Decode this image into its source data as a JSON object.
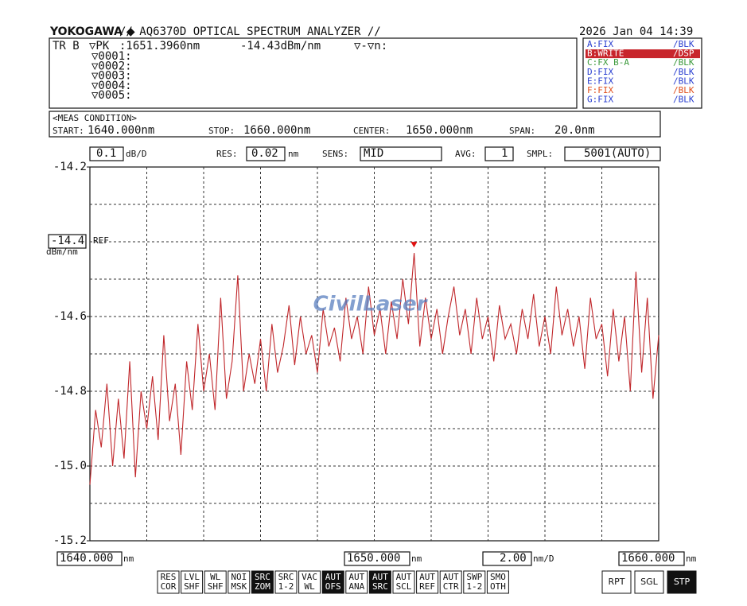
{
  "header": {
    "brand": "YOKOGAWA ◆",
    "title": "// AQ6370D OPTICAL SPECTRUM ANALYZER //",
    "datetime": "2026 Jan 04 14:39"
  },
  "marker_panel": {
    "trace": "TR B",
    "marker": "▽PK",
    "wavelength": ":1651.3960nm",
    "level": "-14.43dBm/nm",
    "delta": "▽-▽n:",
    "markers": [
      "▽0001:",
      "▽0002:",
      "▽0003:",
      "▽0004:",
      "▽0005:"
    ]
  },
  "traces": [
    {
      "label": "A:FIX",
      "mode": "/BLK",
      "color": "#2a3fd0"
    },
    {
      "label": "B:WRITE",
      "mode": "/DSP",
      "color": "#ffffff",
      "background": "#c8262c"
    },
    {
      "label": "C:FX B-A",
      "mode": "/BLK",
      "color": "#3c9a3c"
    },
    {
      "label": "D:FIX",
      "mode": "/BLK",
      "color": "#2a3fd0"
    },
    {
      "label": "E:FIX",
      "mode": "/BLK",
      "color": "#2a3fd0"
    },
    {
      "label": "F:FIX",
      "mode": "/BLK",
      "color": "#e0501e"
    },
    {
      "label": "G:FIX",
      "mode": "/BLK",
      "color": "#2a3fd0"
    }
  ],
  "meas": {
    "heading": "<MEAS CONDITION>",
    "start_label": "START:",
    "start": "1640.000nm",
    "stop_label": "STOP:",
    "stop": "1660.000nm",
    "center_label": "CENTER:",
    "center": "1650.000nm",
    "span_label": "SPAN:",
    "span": "20.0nm"
  },
  "settings": {
    "scale": "0.1",
    "scale_unit": "dB/D",
    "res_label": "RES:",
    "res": "0.02",
    "res_unit": "nm",
    "sens_label": "SENS:",
    "sens": "MID",
    "avg_label": "AVG:",
    "avg": "1",
    "smpl_label": "SMPL:",
    "smpl": "5001(AUTO)"
  },
  "ref": {
    "value": "-14.4",
    "tag": "REF",
    "unit": "dBm/nm"
  },
  "bottom": {
    "start": "1640.000",
    "start_unit": "nm",
    "center": "1650.000",
    "center_unit": "nm",
    "div": "2.00",
    "div_unit": "nm/D",
    "stop": "1660.000",
    "stop_unit": "nm"
  },
  "softkeys": [
    {
      "lines": [
        "RES",
        "COR"
      ],
      "active": false
    },
    {
      "lines": [
        "LVL",
        "SHF"
      ],
      "active": false
    },
    {
      "lines": [
        "WL",
        "SHF"
      ],
      "active": false
    },
    {
      "lines": [
        "NOI",
        "MSK"
      ],
      "active": false
    },
    {
      "lines": [
        "SRC",
        "ZOM"
      ],
      "active": true
    },
    {
      "lines": [
        "SRC",
        "1-2"
      ],
      "active": false
    },
    {
      "lines": [
        "VAC",
        "WL"
      ],
      "active": false
    },
    {
      "lines": [
        "AUT",
        "OFS"
      ],
      "active": true
    },
    {
      "lines": [
        "AUT",
        "ANA"
      ],
      "active": false
    },
    {
      "lines": [
        "AUT",
        "SRC"
      ],
      "active": true
    },
    {
      "lines": [
        "AUT",
        "SCL"
      ],
      "active": false
    },
    {
      "lines": [
        "AUT",
        "REF"
      ],
      "active": false
    },
    {
      "lines": [
        "AUT",
        "CTR"
      ],
      "active": false
    },
    {
      "lines": [
        "SWP",
        "1-2"
      ],
      "active": false
    },
    {
      "lines": [
        "SMO",
        "OTH"
      ],
      "active": false
    }
  ],
  "sweep_keys": [
    {
      "label": "RPT",
      "active": false
    },
    {
      "label": "SGL",
      "active": false
    },
    {
      "label": "STP",
      "active": true
    }
  ],
  "watermark": "CivilLaser",
  "chart_data": {
    "type": "line",
    "x": [
      1640.0,
      1640.2,
      1640.4,
      1640.6,
      1640.8,
      1641.0,
      1641.2,
      1641.4,
      1641.6,
      1641.8,
      1642.0,
      1642.2,
      1642.4,
      1642.6,
      1642.8,
      1643.0,
      1643.2,
      1643.4,
      1643.6,
      1643.8,
      1644.0,
      1644.2,
      1644.4,
      1644.6,
      1644.8,
      1645.0,
      1645.2,
      1645.4,
      1645.6,
      1645.8,
      1646.0,
      1646.2,
      1646.4,
      1646.6,
      1646.8,
      1647.0,
      1647.2,
      1647.4,
      1647.6,
      1647.8,
      1648.0,
      1648.2,
      1648.4,
      1648.6,
      1648.8,
      1649.0,
      1649.2,
      1649.4,
      1649.6,
      1649.8,
      1650.0,
      1650.2,
      1650.4,
      1650.6,
      1650.8,
      1651.0,
      1651.2,
      1651.4,
      1651.6,
      1651.8,
      1652.0,
      1652.2,
      1652.4,
      1652.6,
      1652.8,
      1653.0,
      1653.2,
      1653.4,
      1653.6,
      1653.8,
      1654.0,
      1654.2,
      1654.4,
      1654.6,
      1654.8,
      1655.0,
      1655.2,
      1655.4,
      1655.6,
      1655.8,
      1656.0,
      1656.2,
      1656.4,
      1656.6,
      1656.8,
      1657.0,
      1657.2,
      1657.4,
      1657.6,
      1657.8,
      1658.0,
      1658.2,
      1658.4,
      1658.6,
      1658.8,
      1659.0,
      1659.2,
      1659.4,
      1659.6,
      1659.8,
      1660.0
    ],
    "series": [
      {
        "name": "B:WRITE",
        "color": "#c0262a",
        "values": [
          -15.05,
          -14.85,
          -14.95,
          -14.78,
          -15.0,
          -14.82,
          -14.98,
          -14.72,
          -15.03,
          -14.8,
          -14.9,
          -14.76,
          -14.93,
          -14.65,
          -14.88,
          -14.78,
          -14.97,
          -14.72,
          -14.85,
          -14.62,
          -14.8,
          -14.7,
          -14.85,
          -14.55,
          -14.82,
          -14.72,
          -14.49,
          -14.8,
          -14.7,
          -14.78,
          -14.66,
          -14.8,
          -14.62,
          -14.75,
          -14.68,
          -14.57,
          -14.73,
          -14.6,
          -14.7,
          -14.65,
          -14.75,
          -14.58,
          -14.68,
          -14.63,
          -14.72,
          -14.55,
          -14.66,
          -14.6,
          -14.7,
          -14.52,
          -14.65,
          -14.58,
          -14.7,
          -14.56,
          -14.66,
          -14.5,
          -14.62,
          -14.43,
          -14.68,
          -14.55,
          -14.66,
          -14.58,
          -14.7,
          -14.6,
          -14.52,
          -14.65,
          -14.58,
          -14.7,
          -14.55,
          -14.66,
          -14.6,
          -14.72,
          -14.57,
          -14.66,
          -14.62,
          -14.7,
          -14.58,
          -14.66,
          -14.54,
          -14.68,
          -14.6,
          -14.7,
          -14.52,
          -14.65,
          -14.58,
          -14.68,
          -14.6,
          -14.74,
          -14.55,
          -14.66,
          -14.62,
          -14.76,
          -14.58,
          -14.72,
          -14.6,
          -14.8,
          -14.48,
          -14.75,
          -14.55,
          -14.82,
          -14.65
        ]
      }
    ],
    "marker": {
      "x": 1651.396,
      "y": -14.43,
      "color": "#e01010"
    },
    "xlim": [
      1640,
      1660
    ],
    "ylim": [
      -15.2,
      -14.2
    ],
    "yticks": [
      -14.2,
      -14.6,
      -14.8,
      {
        "value": -15,
        "label": "-15.0"
      },
      -15.2
    ],
    "grid": true,
    "divisions": 10
  }
}
